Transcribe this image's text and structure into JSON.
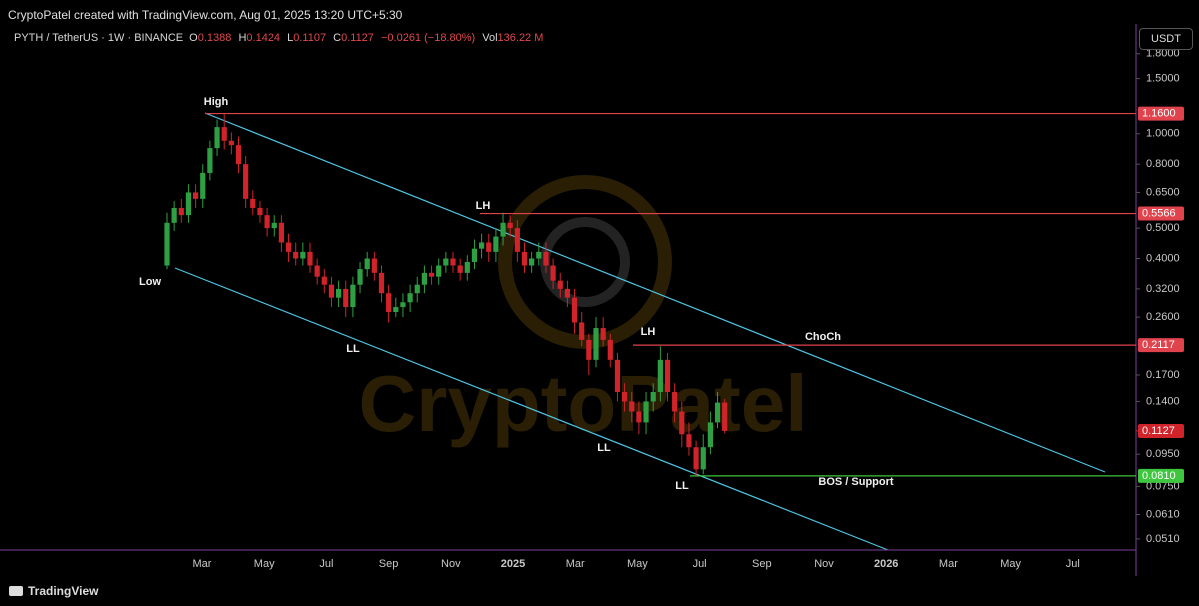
{
  "header": "CryptoPatel created with TradingView.com, Aug 01, 2025 13:20 UTC+5:30",
  "footer": "TradingView",
  "chart_data": {
    "type": "candlestick",
    "symbol": "PYTH / TetherUS · 1W · BINANCE",
    "ohlc_labels": [
      "O",
      "H",
      "L",
      "C"
    ],
    "change": "−0.0261 (−18.80%)",
    "volume_label": "Vol",
    "volume": "136.22 M",
    "currency": "USDT",
    "up_color": "#2ea043",
    "down_color": "#d1232a",
    "log_scale": true,
    "ylim": [
      0.047,
      2.24
    ],
    "yticks": [
      {
        "value": 1.8,
        "label": "1.8000"
      },
      {
        "value": 1.5,
        "label": "1.5000"
      },
      {
        "value": 1.0,
        "label": "1.0000"
      },
      {
        "value": 0.8,
        "label": "0.8000"
      },
      {
        "value": 0.65,
        "label": "0.6500"
      },
      {
        "value": 0.5,
        "label": "0.5000"
      },
      {
        "value": 0.4,
        "label": "0.4000"
      },
      {
        "value": 0.32,
        "label": "0.3200"
      },
      {
        "value": 0.26,
        "label": "0.2600"
      },
      {
        "value": 0.17,
        "label": "0.1700"
      },
      {
        "value": 0.14,
        "label": "0.1400"
      },
      {
        "value": 0.095,
        "label": "0.0950"
      },
      {
        "value": 0.075,
        "label": "0.0750"
      },
      {
        "value": 0.061,
        "label": "0.0610"
      },
      {
        "value": 0.051,
        "label": "0.0510"
      }
    ],
    "xtick_labels": [
      "Mar",
      "May",
      "Jul",
      "Sep",
      "Nov",
      "2025",
      "Mar",
      "May",
      "Jul",
      "Sep",
      "Nov",
      "2026",
      "Mar",
      "May",
      "Jul"
    ],
    "candles": {
      "open": [
        0.38,
        0.52,
        0.58,
        0.55,
        0.65,
        0.62,
        0.75,
        0.9,
        1.05,
        0.95,
        0.92,
        0.8,
        0.62,
        0.58,
        0.55,
        0.5,
        0.52,
        0.45,
        0.42,
        0.4,
        0.42,
        0.38,
        0.35,
        0.33,
        0.3,
        0.32,
        0.28,
        0.33,
        0.37,
        0.4,
        0.36,
        0.31,
        0.27,
        0.28,
        0.29,
        0.31,
        0.33,
        0.36,
        0.35,
        0.38,
        0.4,
        0.38,
        0.36,
        0.39,
        0.43,
        0.45,
        0.42,
        0.47,
        0.52,
        0.5,
        0.42,
        0.38,
        0.4,
        0.42,
        0.38,
        0.34,
        0.32,
        0.3,
        0.25,
        0.22,
        0.19,
        0.24,
        0.22,
        0.19,
        0.15,
        0.14,
        0.13,
        0.12,
        0.14,
        0.15,
        0.19,
        0.15,
        0.13,
        0.11,
        0.1,
        0.085,
        0.1,
        0.12,
        0.1388
      ],
      "high": [
        0.56,
        0.61,
        0.62,
        0.69,
        0.69,
        0.8,
        0.95,
        1.11,
        1.16,
        1.01,
        0.98,
        0.85,
        0.66,
        0.61,
        0.58,
        0.55,
        0.55,
        0.48,
        0.45,
        0.45,
        0.45,
        0.4,
        0.37,
        0.35,
        0.34,
        0.34,
        0.35,
        0.39,
        0.42,
        0.42,
        0.38,
        0.33,
        0.3,
        0.31,
        0.33,
        0.35,
        0.38,
        0.38,
        0.4,
        0.42,
        0.42,
        0.4,
        0.41,
        0.46,
        0.48,
        0.48,
        0.5,
        0.56,
        0.55,
        0.53,
        0.45,
        0.42,
        0.45,
        0.45,
        0.4,
        0.36,
        0.34,
        0.32,
        0.27,
        0.23,
        0.26,
        0.26,
        0.23,
        0.2,
        0.16,
        0.15,
        0.14,
        0.15,
        0.16,
        0.21,
        0.2,
        0.16,
        0.14,
        0.12,
        0.105,
        0.11,
        0.13,
        0.15,
        0.1424
      ],
      "low": [
        0.37,
        0.49,
        0.52,
        0.52,
        0.58,
        0.58,
        0.71,
        0.85,
        0.89,
        0.86,
        0.75,
        0.58,
        0.55,
        0.52,
        0.47,
        0.47,
        0.42,
        0.39,
        0.38,
        0.38,
        0.36,
        0.33,
        0.31,
        0.28,
        0.28,
        0.26,
        0.26,
        0.31,
        0.35,
        0.34,
        0.29,
        0.25,
        0.26,
        0.26,
        0.27,
        0.29,
        0.31,
        0.33,
        0.33,
        0.36,
        0.36,
        0.34,
        0.34,
        0.37,
        0.4,
        0.39,
        0.39,
        0.44,
        0.47,
        0.39,
        0.36,
        0.36,
        0.38,
        0.36,
        0.32,
        0.3,
        0.28,
        0.23,
        0.21,
        0.17,
        0.18,
        0.21,
        0.18,
        0.14,
        0.13,
        0.12,
        0.11,
        0.11,
        0.13,
        0.14,
        0.14,
        0.12,
        0.1,
        0.094,
        0.081,
        0.082,
        0.095,
        0.115,
        0.1107
      ],
      "close": [
        0.52,
        0.58,
        0.55,
        0.65,
        0.62,
        0.75,
        0.9,
        1.05,
        0.95,
        0.92,
        0.8,
        0.62,
        0.58,
        0.55,
        0.5,
        0.52,
        0.45,
        0.42,
        0.4,
        0.42,
        0.38,
        0.35,
        0.33,
        0.3,
        0.32,
        0.28,
        0.33,
        0.37,
        0.4,
        0.36,
        0.31,
        0.27,
        0.28,
        0.29,
        0.31,
        0.33,
        0.36,
        0.35,
        0.38,
        0.4,
        0.38,
        0.36,
        0.39,
        0.43,
        0.45,
        0.42,
        0.47,
        0.52,
        0.5,
        0.42,
        0.38,
        0.4,
        0.42,
        0.38,
        0.34,
        0.32,
        0.3,
        0.25,
        0.22,
        0.19,
        0.24,
        0.22,
        0.19,
        0.15,
        0.14,
        0.13,
        0.12,
        0.14,
        0.15,
        0.19,
        0.15,
        0.13,
        0.11,
        0.1,
        0.085,
        0.1,
        0.12,
        0.1388,
        0.1127
      ]
    },
    "levels": [
      {
        "value": 1.16,
        "label": "1.1600",
        "color": "#e0434b"
      },
      {
        "value": 0.5566,
        "label": "0.5566",
        "color": "#e0434b"
      },
      {
        "value": 0.2117,
        "label": "0.2117",
        "color": "#e0434b"
      },
      {
        "value": 0.081,
        "label": "0.0810",
        "color": "#3ec63e"
      }
    ],
    "annotations": [
      "High",
      "Low",
      "LH",
      "LL",
      "LH",
      "LL",
      "LL",
      "ChoCh",
      "BOS / Support"
    ],
    "watermark": "CryptoPatel"
  }
}
